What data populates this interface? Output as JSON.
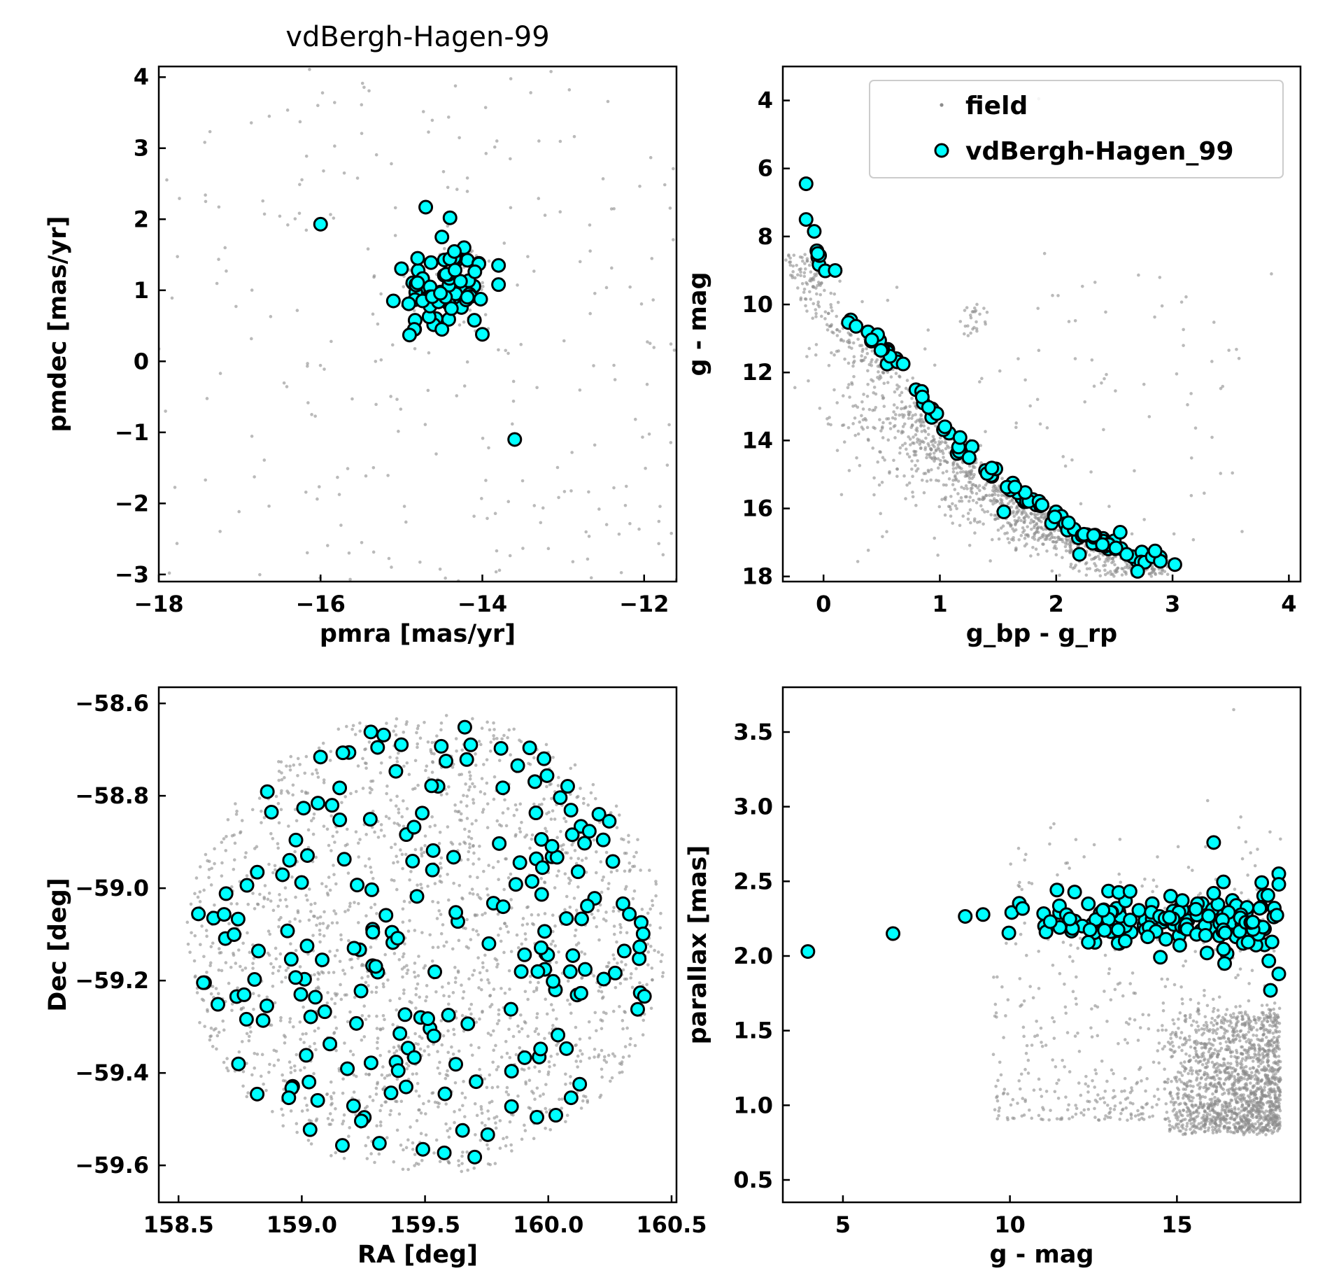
{
  "figure_title": "vdBergh-Hagen-99",
  "colors": {
    "field": "#8c8c8c",
    "cluster_fill": "#00ffff",
    "cluster_edge": "#000000"
  },
  "legend": {
    "field_label": "field",
    "cluster_label": "vdBergh-Hagen_99",
    "placement": "top-right"
  },
  "chart_data": [
    {
      "id": "pm",
      "type": "scatter",
      "title": "vdBergh-Hagen-99",
      "xlabel": "pmra [mas/yr]",
      "ylabel": "pmdec [mas/yr]",
      "xlim": [
        -18,
        -11.6
      ],
      "ylim": [
        -3.1,
        4.15
      ],
      "xticks": [
        -18,
        -16,
        -14,
        -12
      ],
      "xtick_labels": [
        "−18",
        "−16",
        "−14",
        "−12"
      ],
      "yticks": [
        -3,
        -2,
        -1,
        0,
        1,
        2,
        3,
        4
      ],
      "ytick_labels": [
        "−3",
        "−2",
        "−1",
        "0",
        "1",
        "2",
        "3",
        "4"
      ],
      "grid": false,
      "field": {
        "model": "uniform",
        "n": 260,
        "x_range": [
          -18,
          -11.6
        ],
        "y_range": [
          -3.1,
          4.15
        ],
        "note_cluster": {
          "x": [
            -15.0,
            -13.9
          ],
          "y": [
            0.4,
            1.6
          ],
          "n": 60
        }
      },
      "cluster": {
        "explicit": [
          {
            "x": -16.0,
            "y": 1.93
          },
          {
            "x": -13.6,
            "y": -1.1
          },
          {
            "x": -14.7,
            "y": 2.17
          },
          {
            "x": -14.4,
            "y": 2.02
          },
          {
            "x": -15.1,
            "y": 0.85
          },
          {
            "x": -14.9,
            "y": 0.37
          },
          {
            "x": -14.0,
            "y": 0.38
          },
          {
            "x": -13.8,
            "y": 1.35
          },
          {
            "x": -13.8,
            "y": 1.08
          },
          {
            "x": -14.5,
            "y": 0.45
          },
          {
            "x": -14.8,
            "y": 1.45
          },
          {
            "x": -14.5,
            "y": 1.75
          }
        ],
        "core": {
          "x_range": [
            -15.0,
            -13.9
          ],
          "y_range": [
            0.45,
            1.6
          ],
          "n": 70
        }
      }
    },
    {
      "id": "cmd",
      "type": "scatter",
      "xlabel": "g_bp - g_rp",
      "ylabel": "g - mag",
      "xlim": [
        -0.35,
        4.1
      ],
      "ylim": [
        18.15,
        3.0
      ],
      "y_inverted": true,
      "xticks": [
        0,
        1,
        2,
        3,
        4
      ],
      "xtick_labels": [
        "0",
        "1",
        "2",
        "3",
        "4"
      ],
      "yticks": [
        4,
        6,
        8,
        10,
        12,
        14,
        16,
        18
      ],
      "ytick_labels": [
        "4",
        "6",
        "8",
        "10",
        "12",
        "14",
        "16",
        "18"
      ],
      "grid": false,
      "sequence": {
        "x": [
          -0.15,
          -0.1,
          0.05,
          0.15,
          0.3,
          0.5,
          0.7,
          0.9,
          1.1,
          1.3,
          1.5,
          1.7,
          1.9,
          2.1,
          2.3,
          2.5,
          2.7,
          2.9
        ],
        "y": [
          6.5,
          8.0,
          9.5,
          10.3,
          10.7,
          11.2,
          12.1,
          13.0,
          13.9,
          14.6,
          15.2,
          15.6,
          16.0,
          16.5,
          16.9,
          17.2,
          17.4,
          17.5
        ]
      },
      "field": {
        "model": "below-sequence",
        "n": 1100,
        "max_mag": 18.0
      },
      "cluster": {
        "n_along_sequence": 105,
        "explicit": [
          {
            "x": -0.15,
            "y": 6.45
          },
          {
            "x": -0.15,
            "y": 7.5
          },
          {
            "x": -0.08,
            "y": 7.85
          },
          {
            "x": -0.05,
            "y": 8.5
          },
          {
            "x": 0.1,
            "y": 9.0
          },
          {
            "x": 1.55,
            "y": 16.1
          },
          {
            "x": 2.2,
            "y": 17.35
          },
          {
            "x": 2.55,
            "y": 16.7
          },
          {
            "x": 3.02,
            "y": 17.65
          },
          {
            "x": 2.7,
            "y": 17.85
          },
          {
            "x": 2.85,
            "y": 17.25
          }
        ]
      },
      "field_extra": [
        {
          "x": 1.85,
          "y": 3.95
        },
        {
          "x": 3.85,
          "y": 9.1
        },
        {
          "x": 2.8,
          "y": 13.3
        },
        {
          "x": 1.9,
          "y": 8.5
        }
      ]
    },
    {
      "id": "sky",
      "type": "scatter",
      "xlabel": "RA [deg]",
      "ylabel": "Dec [deg]",
      "xlim": [
        158.42,
        160.52
      ],
      "ylim": [
        -59.68,
        -58.565
      ],
      "xticks": [
        158.5,
        159.0,
        159.5,
        160.0,
        160.5
      ],
      "xtick_labels": [
        "158.5",
        "159.0",
        "159.5",
        "160.0",
        "160.5"
      ],
      "yticks": [
        -59.6,
        -59.4,
        -59.2,
        -59.0,
        -58.8,
        -58.6
      ],
      "ytick_labels": [
        "−59.6",
        "−59.4",
        "−59.2",
        "−59.0",
        "−58.8",
        "−58.6"
      ],
      "grid": false,
      "field": {
        "model": "disk",
        "n": 1800,
        "center": [
          159.5,
          -59.12
        ],
        "radius_deg": 0.5
      },
      "cluster": {
        "model": "disk",
        "n": 200,
        "center": [
          159.5,
          -59.12
        ],
        "radius_deg": 0.5
      }
    },
    {
      "id": "plx",
      "type": "scatter",
      "xlabel": "g - mag",
      "ylabel": "parallax [mas]",
      "xlim": [
        3.2,
        18.7
      ],
      "ylim": [
        0.35,
        3.8
      ],
      "xticks": [
        5,
        10,
        15
      ],
      "xtick_labels": [
        "5",
        "10",
        "15"
      ],
      "yticks": [
        0.5,
        1.0,
        1.5,
        2.0,
        2.5,
        3.0,
        3.5
      ],
      "ytick_labels": [
        "0.5",
        "1.0",
        "1.5",
        "2.0",
        "2.5",
        "3.0",
        "3.5"
      ],
      "grid": false,
      "field": {
        "model": "bulk+noise",
        "n": 1400,
        "bulk_y_range": [
          0.8,
          1.6
        ],
        "bulk_x_range": [
          14.5,
          18.1
        ]
      },
      "cluster": {
        "n_band": 150,
        "band_y_center": 2.25,
        "explicit": [
          {
            "x": 3.95,
            "y": 2.03
          },
          {
            "x": 6.5,
            "y": 2.15
          },
          {
            "x": 16.1,
            "y": 2.76
          },
          {
            "x": 16.1,
            "y": 2.42
          },
          {
            "x": 15.9,
            "y": 2.02
          },
          {
            "x": 17.8,
            "y": 1.77
          },
          {
            "x": 18.05,
            "y": 1.88
          },
          {
            "x": 18.05,
            "y": 2.48
          },
          {
            "x": 13.45,
            "y": 2.1
          }
        ]
      }
    }
  ]
}
